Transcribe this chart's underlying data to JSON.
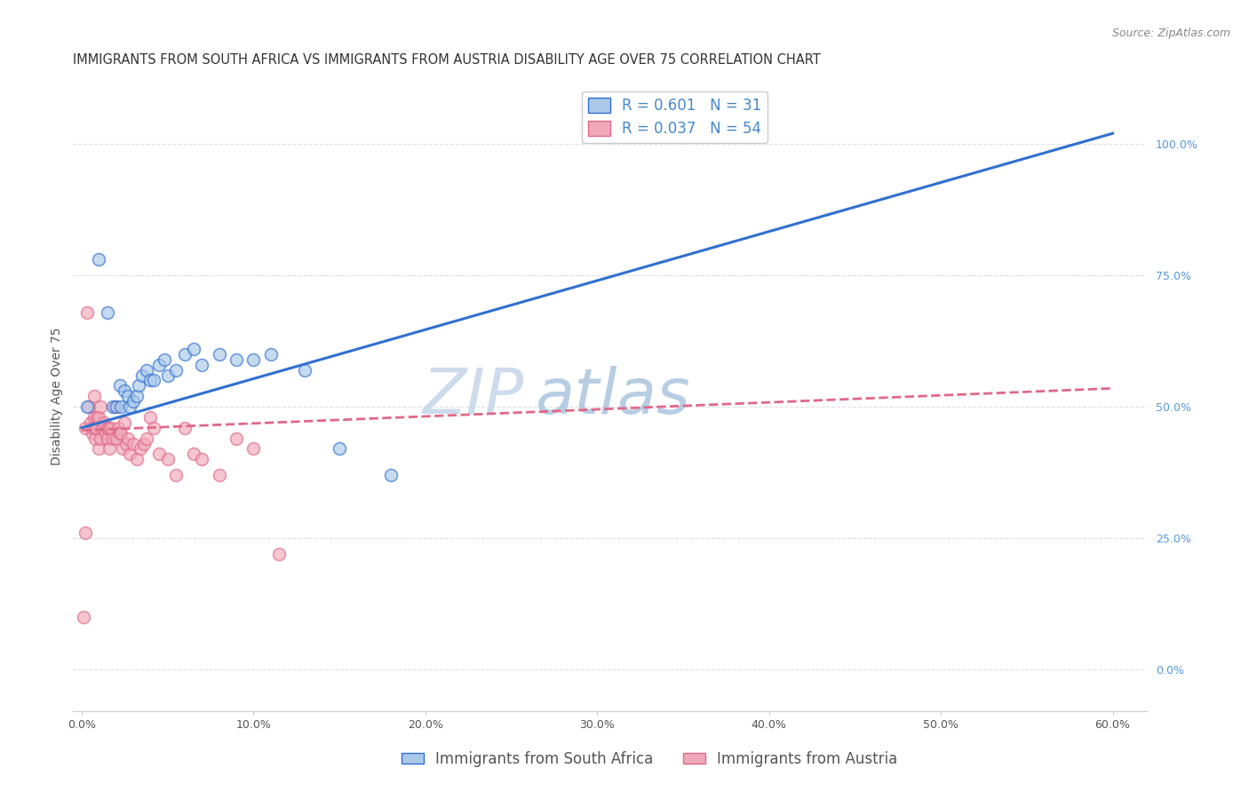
{
  "title": "IMMIGRANTS FROM SOUTH AFRICA VS IMMIGRANTS FROM AUSTRIA DISABILITY AGE OVER 75 CORRELATION CHART",
  "source": "Source: ZipAtlas.com",
  "ylabel": "Disability Age Over 75",
  "xlim": [
    -0.005,
    0.62
  ],
  "ylim": [
    -0.08,
    1.12
  ],
  "xtick_labels": [
    "0.0%",
    "10.0%",
    "20.0%",
    "30.0%",
    "40.0%",
    "50.0%",
    "60.0%"
  ],
  "xtick_vals": [
    0.0,
    0.1,
    0.2,
    0.3,
    0.4,
    0.5,
    0.6
  ],
  "ytick_labels_right": [
    "100.0%",
    "75.0%",
    "50.0%",
    "25.0%",
    "0.0%"
  ],
  "ytick_vals_right": [
    1.0,
    0.75,
    0.5,
    0.25,
    0.0
  ],
  "legend_blue_r": "R = 0.601",
  "legend_blue_n": "N = 31",
  "legend_pink_r": "R = 0.037",
  "legend_pink_n": "N = 54",
  "legend_label_blue": "Immigrants from South Africa",
  "legend_label_pink": "Immigrants from Austria",
  "watermark_zip": "ZIP",
  "watermark_atlas": "atlas",
  "blue_color": "#aac8e8",
  "pink_color": "#f0a8b8",
  "blue_line_color": "#3070d0",
  "pink_line_color": "#e06888",
  "blue_scatter_x": [
    0.003,
    0.01,
    0.015,
    0.018,
    0.02,
    0.022,
    0.023,
    0.025,
    0.027,
    0.028,
    0.03,
    0.032,
    0.033,
    0.035,
    0.038,
    0.04,
    0.042,
    0.045,
    0.048,
    0.05,
    0.055,
    0.06,
    0.065,
    0.07,
    0.08,
    0.09,
    0.1,
    0.11,
    0.13,
    0.15,
    0.18
  ],
  "blue_scatter_y": [
    0.5,
    0.78,
    0.68,
    0.5,
    0.5,
    0.54,
    0.5,
    0.53,
    0.52,
    0.5,
    0.51,
    0.52,
    0.54,
    0.56,
    0.57,
    0.55,
    0.55,
    0.58,
    0.59,
    0.56,
    0.57,
    0.6,
    0.61,
    0.58,
    0.6,
    0.59,
    0.59,
    0.6,
    0.57,
    0.42,
    0.37
  ],
  "pink_scatter_x": [
    0.001,
    0.002,
    0.003,
    0.004,
    0.005,
    0.006,
    0.006,
    0.007,
    0.007,
    0.008,
    0.008,
    0.009,
    0.009,
    0.01,
    0.01,
    0.011,
    0.011,
    0.012,
    0.013,
    0.014,
    0.015,
    0.015,
    0.016,
    0.016,
    0.017,
    0.018,
    0.019,
    0.02,
    0.021,
    0.022,
    0.023,
    0.024,
    0.025,
    0.026,
    0.027,
    0.028,
    0.03,
    0.032,
    0.034,
    0.036,
    0.038,
    0.04,
    0.042,
    0.045,
    0.05,
    0.055,
    0.06,
    0.065,
    0.07,
    0.08,
    0.09,
    0.1,
    0.115,
    0.002
  ],
  "pink_scatter_y": [
    0.1,
    0.46,
    0.68,
    0.5,
    0.47,
    0.45,
    0.46,
    0.52,
    0.48,
    0.44,
    0.46,
    0.48,
    0.46,
    0.42,
    0.48,
    0.5,
    0.44,
    0.46,
    0.47,
    0.45,
    0.44,
    0.46,
    0.46,
    0.42,
    0.46,
    0.44,
    0.5,
    0.44,
    0.46,
    0.45,
    0.45,
    0.42,
    0.47,
    0.43,
    0.44,
    0.41,
    0.43,
    0.4,
    0.42,
    0.43,
    0.44,
    0.48,
    0.46,
    0.41,
    0.4,
    0.37,
    0.46,
    0.41,
    0.4,
    0.37,
    0.44,
    0.42,
    0.22,
    0.26
  ],
  "blue_line_x": [
    0.0,
    0.6
  ],
  "blue_line_y": [
    0.46,
    1.02
  ],
  "pink_line_x": [
    0.0,
    0.6
  ],
  "pink_line_y": [
    0.455,
    0.535
  ],
  "grid_color": "#e0e0e0",
  "background_color": "#ffffff",
  "title_fontsize": 10.5,
  "source_fontsize": 9,
  "axis_label_fontsize": 10,
  "tick_fontsize": 9,
  "legend_fontsize": 12,
  "watermark_fontsize_zip": 52,
  "watermark_fontsize_atlas": 52,
  "watermark_color_zip": "#c8d8ec",
  "watermark_color_atlas": "#b0c8e0",
  "scatter_size": 100,
  "scatter_alpha": 0.65,
  "scatter_linewidth": 1.2
}
